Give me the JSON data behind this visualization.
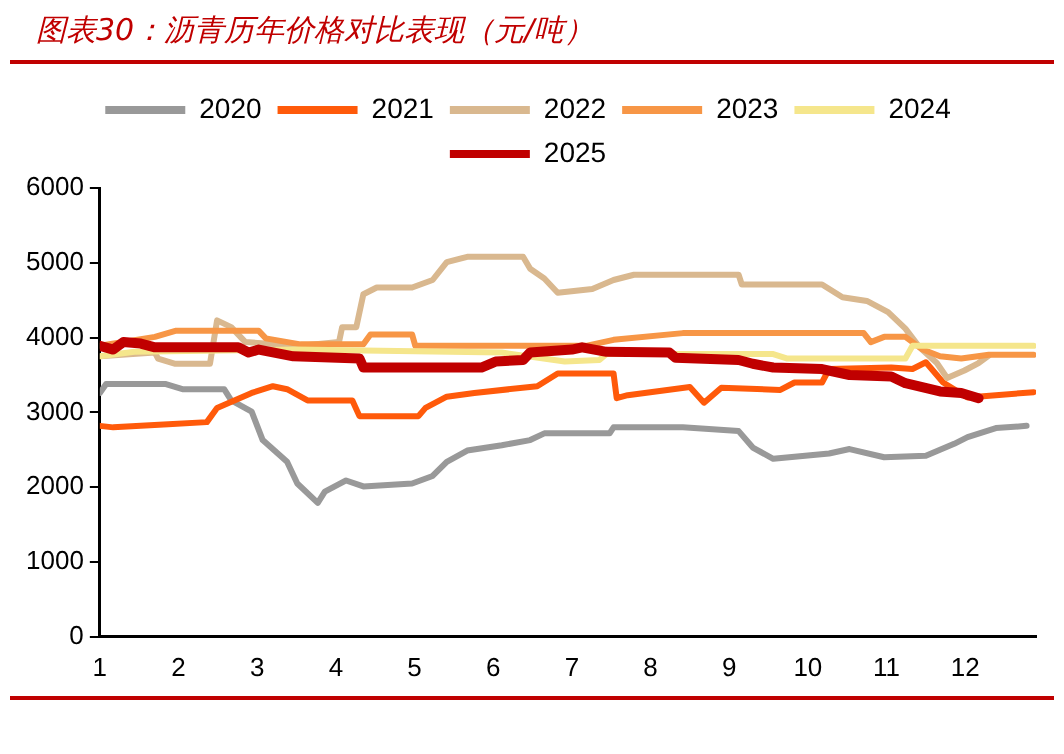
{
  "chart_data": {
    "type": "line",
    "title": "图表30：沥青历年价格对比表现（元/吨）",
    "xlim": [
      1,
      12.9
    ],
    "xticks": [
      1,
      2,
      3,
      4,
      5,
      6,
      7,
      8,
      9,
      10,
      11,
      12
    ],
    "ylim": [
      0,
      6000
    ],
    "yticks": [
      0,
      1000,
      2000,
      3000,
      4000,
      5000,
      6000
    ],
    "grid": false,
    "legend": "top",
    "marker": "none",
    "line_style": "solid",
    "series": [
      {
        "name": "2020",
        "color": "#999999",
        "x": [
          1.0,
          1.08,
          1.83,
          2.05,
          2.58,
          2.67,
          2.93,
          3.07,
          3.38,
          3.51,
          3.77,
          3.86,
          4.13,
          4.35,
          4.97,
          5.23,
          5.41,
          5.67,
          6.11,
          6.47,
          6.65,
          7.48,
          7.53,
          8.41,
          9.12,
          9.3,
          9.56,
          10.27,
          10.53,
          10.97,
          11.5,
          11.86,
          12.03,
          12.39,
          12.78
        ],
        "values": [
          3260,
          3380,
          3380,
          3310,
          3310,
          3160,
          3010,
          2630,
          2340,
          2050,
          1790,
          1940,
          2090,
          2010,
          2050,
          2150,
          2340,
          2490,
          2560,
          2630,
          2720,
          2720,
          2800,
          2800,
          2750,
          2530,
          2380,
          2450,
          2510,
          2400,
          2420,
          2580,
          2670,
          2790,
          2820
        ]
      },
      {
        "name": "2021",
        "color": "#ff5a0a",
        "x": [
          1.0,
          1.17,
          1.87,
          2.36,
          2.49,
          2.71,
          2.93,
          3.2,
          3.38,
          3.64,
          4.21,
          4.3,
          5.05,
          5.14,
          5.41,
          5.76,
          6.56,
          6.82,
          7.53,
          7.57,
          7.71,
          8.5,
          8.68,
          8.9,
          9.65,
          9.83,
          10.18,
          10.27,
          11.06,
          11.33,
          11.5,
          11.72,
          12.03,
          12.39,
          12.87
        ],
        "values": [
          2820,
          2800,
          2840,
          2870,
          3060,
          3160,
          3260,
          3350,
          3310,
          3160,
          3160,
          2950,
          2950,
          3060,
          3210,
          3260,
          3350,
          3520,
          3520,
          3190,
          3230,
          3340,
          3130,
          3330,
          3300,
          3400,
          3400,
          3580,
          3600,
          3580,
          3670,
          3400,
          3200,
          3230,
          3270
        ]
      },
      {
        "name": "2022",
        "color": "#d9b88f",
        "x": [
          1.0,
          1.7,
          1.74,
          1.96,
          2.4,
          2.49,
          2.67,
          2.85,
          3.55,
          4.04,
          4.08,
          4.26,
          4.35,
          4.52,
          4.97,
          5.23,
          5.41,
          5.67,
          6.38,
          6.47,
          6.65,
          6.82,
          7.26,
          7.53,
          7.79,
          9.12,
          9.16,
          10.18,
          10.44,
          10.75,
          11.02,
          11.24,
          11.42,
          11.64,
          11.77,
          11.99,
          12.17,
          12.3
        ],
        "values": [
          3750,
          3800,
          3720,
          3650,
          3650,
          4230,
          4140,
          3940,
          3890,
          3940,
          4140,
          4140,
          4580,
          4670,
          4670,
          4770,
          5010,
          5080,
          5080,
          4920,
          4790,
          4600,
          4650,
          4770,
          4840,
          4840,
          4710,
          4710,
          4540,
          4490,
          4340,
          4120,
          3870,
          3660,
          3460,
          3560,
          3660,
          3760
        ]
      },
      {
        "name": "2023",
        "color": "#f79646",
        "x": [
          1.0,
          1.7,
          1.96,
          3.02,
          3.11,
          3.55,
          4.35,
          4.44,
          4.97,
          5.01,
          7.18,
          7.53,
          8.41,
          10.71,
          10.8,
          10.97,
          11.24,
          11.46,
          11.68,
          11.95,
          12.3,
          12.87
        ],
        "values": [
          3890,
          4010,
          4090,
          4090,
          3990,
          3910,
          3910,
          4040,
          4040,
          3890,
          3890,
          3970,
          4060,
          4060,
          3940,
          4010,
          4010,
          3840,
          3750,
          3720,
          3770,
          3770
        ]
      },
      {
        "name": "2024",
        "color": "#f5e68c",
        "x": [
          1.0,
          1.44,
          3.47,
          6.11,
          6.91,
          7.35,
          7.44,
          9.56,
          9.74,
          11.24,
          11.33,
          12.87
        ],
        "values": [
          3750,
          3810,
          3840,
          3800,
          3680,
          3700,
          3780,
          3780,
          3720,
          3720,
          3890,
          3890
        ]
      },
      {
        "name": "2025",
        "color": "#c00000",
        "x": [
          1.0,
          1.17,
          1.3,
          1.52,
          1.7,
          2.76,
          2.89,
          3.02,
          3.46,
          4.3,
          4.35,
          5.85,
          6.03,
          6.38,
          6.47,
          7.0,
          7.13,
          7.44,
          8.24,
          8.32,
          9.12,
          9.3,
          9.56,
          10.18,
          10.53,
          11.06,
          11.24,
          11.68,
          11.95,
          12.17
        ],
        "values": [
          3890,
          3840,
          3940,
          3920,
          3870,
          3870,
          3800,
          3840,
          3750,
          3720,
          3600,
          3600,
          3680,
          3700,
          3800,
          3840,
          3870,
          3810,
          3800,
          3730,
          3700,
          3650,
          3600,
          3580,
          3500,
          3480,
          3390,
          3280,
          3260,
          3190
        ]
      }
    ]
  }
}
